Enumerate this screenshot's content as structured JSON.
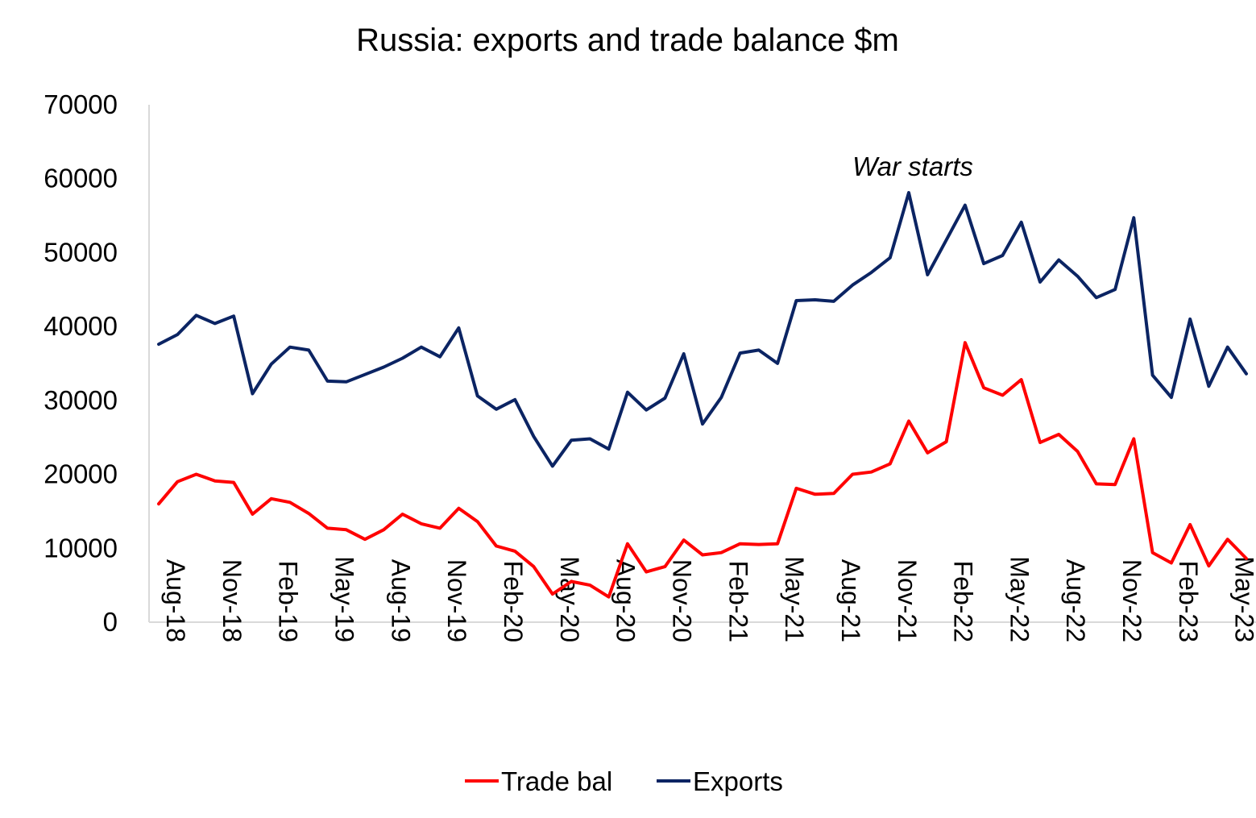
{
  "chart_data": {
    "type": "line",
    "title": "Russia: exports and trade balance $m",
    "xlabel": "",
    "ylabel": "",
    "ylim": [
      0,
      70000
    ],
    "yticks": [
      "0",
      "10000",
      "20000",
      "30000",
      "40000",
      "50000",
      "60000",
      "70000"
    ],
    "x": [
      "Aug-18",
      "Sep-18",
      "Oct-18",
      "Nov-18",
      "Dec-18",
      "Jan-19",
      "Feb-19",
      "Mar-19",
      "Apr-19",
      "May-19",
      "Jun-19",
      "Jul-19",
      "Aug-19",
      "Sep-19",
      "Oct-19",
      "Nov-19",
      "Dec-19",
      "Jan-20",
      "Feb-20",
      "Mar-20",
      "Apr-20",
      "May-20",
      "Jun-20",
      "Jul-20",
      "Aug-20",
      "Sep-20",
      "Oct-20",
      "Nov-20",
      "Dec-20",
      "Jan-21",
      "Feb-21",
      "Mar-21",
      "Apr-21",
      "May-21",
      "Jun-21",
      "Jul-21",
      "Aug-21",
      "Sep-21",
      "Oct-21",
      "Nov-21",
      "Dec-21",
      "Jan-22",
      "Feb-22",
      "Mar-22",
      "Apr-22",
      "May-22",
      "Jun-22",
      "Jul-22",
      "Aug-22",
      "Sep-22",
      "Oct-22",
      "Nov-22",
      "Dec-22",
      "Jan-23",
      "Feb-23",
      "Mar-23",
      "Apr-23",
      "May-23",
      "Jun-23"
    ],
    "xtick_labels": [
      "Aug-18",
      "Nov-18",
      "Feb-19",
      "May-19",
      "Aug-19",
      "Nov-19",
      "Feb-20",
      "May-20",
      "Aug-20",
      "Nov-20",
      "Feb-21",
      "May-21",
      "Aug-21",
      "Nov-21",
      "Feb-22",
      "May-22",
      "Aug-22",
      "Nov-22",
      "Feb-23",
      "May-23"
    ],
    "series": [
      {
        "name": "Trade bal",
        "color": "#ff0000",
        "values": [
          15900,
          18900,
          19900,
          19000,
          18800,
          14500,
          16600,
          16100,
          14600,
          12600,
          12400,
          11100,
          12400,
          14500,
          13200,
          12600,
          15300,
          13500,
          10200,
          9500,
          7400,
          3700,
          5400,
          4900,
          3300,
          10500,
          6700,
          7400,
          11000,
          9000,
          9300,
          10500,
          10400,
          10500,
          18000,
          17200,
          17300,
          19900,
          20200,
          21300,
          27100,
          22800,
          24300,
          37700,
          31600,
          30600,
          32700,
          24200,
          25300,
          23000,
          18600,
          18500,
          24700,
          9300,
          7900,
          13100,
          7500,
          11100,
          8500
        ]
      },
      {
        "name": "Exports",
        "color": "#0b2463",
        "values": [
          37500,
          38800,
          41400,
          40300,
          41300,
          30800,
          34800,
          37100,
          36700,
          32500,
          32400,
          33400,
          34400,
          35600,
          37100,
          35800,
          39700,
          30500,
          28700,
          30000,
          25000,
          21000,
          24500,
          24700,
          23300,
          31000,
          28600,
          30200,
          36200,
          26700,
          30300,
          36300,
          36700,
          34900,
          43400,
          43500,
          43300,
          45500,
          47200,
          49200,
          58000,
          46900,
          51600,
          56300,
          48400,
          49500,
          54000,
          45900,
          48900,
          46700,
          43800,
          44900,
          54600,
          33300,
          30300,
          40900,
          31800,
          37100,
          33500
        ]
      }
    ],
    "annotations": [
      {
        "text": "War starts"
      }
    ],
    "legend": "bottom",
    "grid": false
  }
}
